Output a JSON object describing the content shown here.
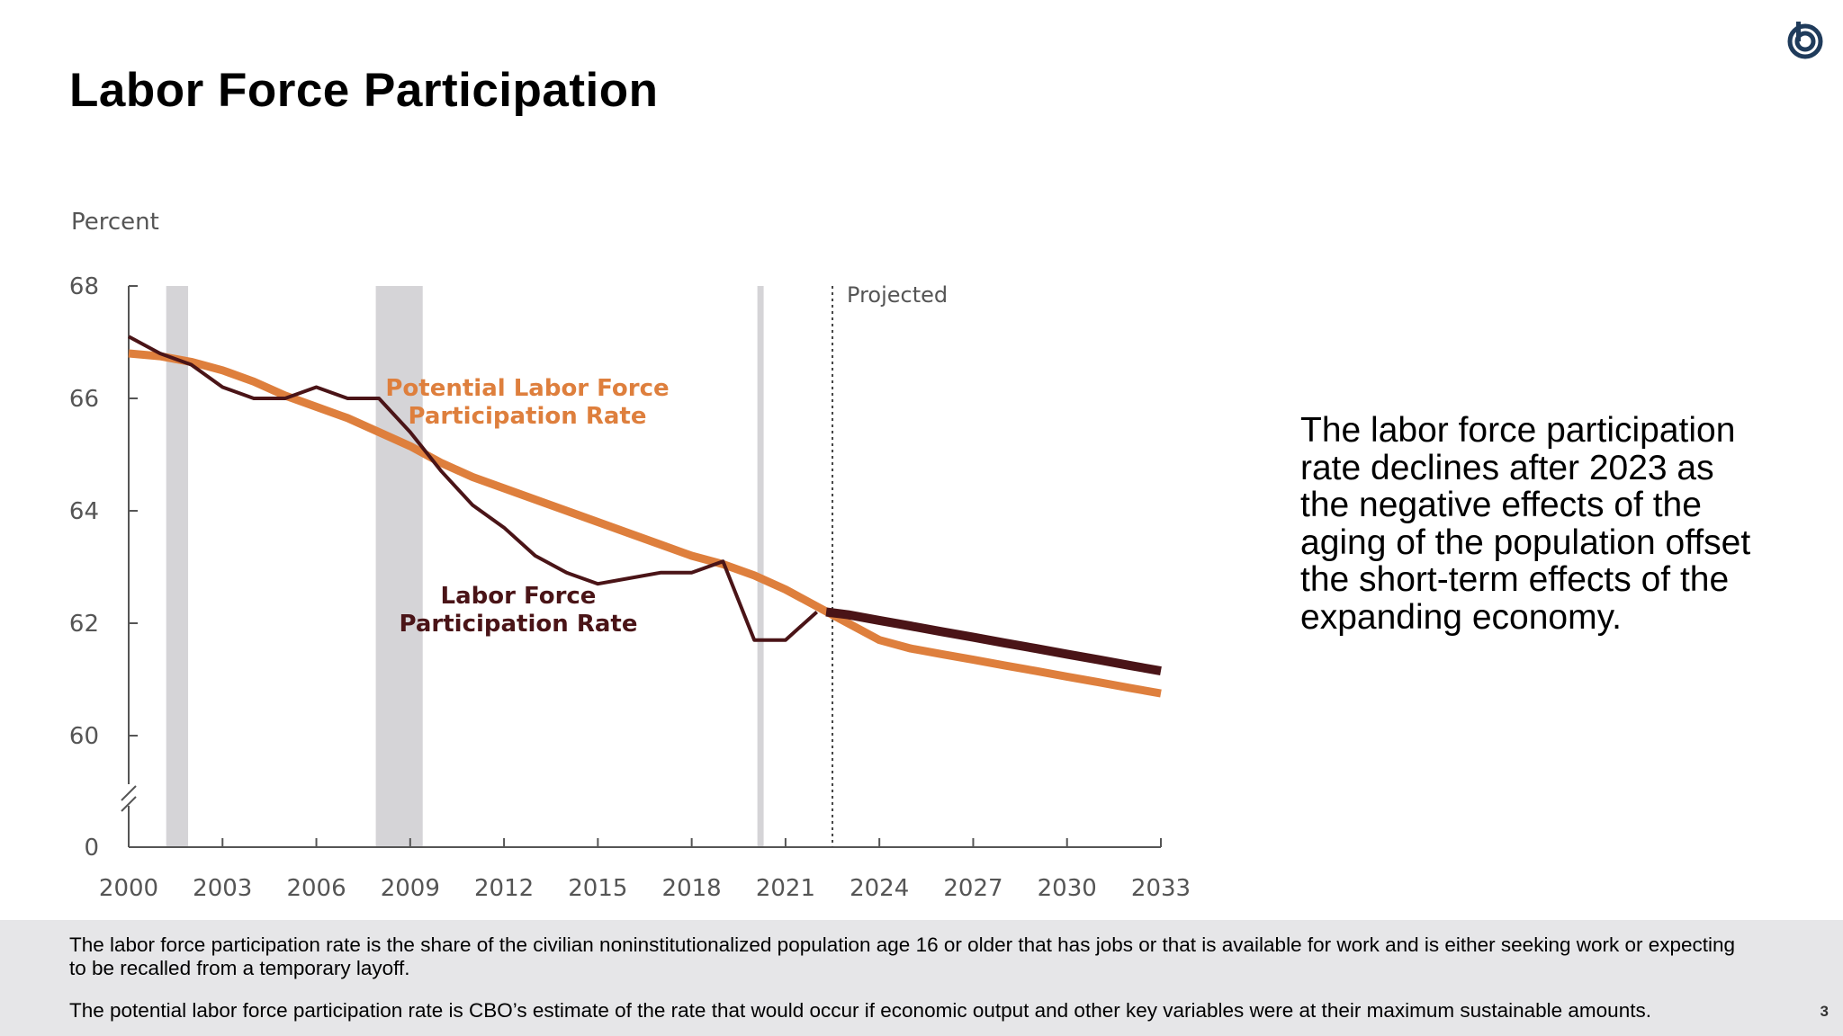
{
  "slide": {
    "title": "Labor Force Participation",
    "side_text": "The labor force participation rate declines after 2023 as the negative effects of the aging of the population offset the short-term effects of the expanding economy.",
    "footnote_1": "The labor force participation rate is the share of the civilian noninstitutionalized population age 16 or older that has jobs or that is available for work and is either seeking work or expecting to be recalled from a temporary layoff.",
    "footnote_2": "The potential labor force participation rate is CBO’s estimate of the rate that would occur if economic output and other key variables were at their maximum sustainable amounts.",
    "page_number": "3",
    "logo_icon": "cbo-logo-icon"
  },
  "chart_data": {
    "type": "line",
    "ylabel": "Percent",
    "y_ticks": [
      0,
      60,
      62,
      64,
      66,
      68
    ],
    "x_ticks": [
      2000,
      2003,
      2006,
      2009,
      2012,
      2015,
      2018,
      2021,
      2024,
      2027,
      2030,
      2033
    ],
    "xlim": [
      2000,
      2033
    ],
    "ylim_display": [
      59,
      68
    ],
    "y_axis_break": true,
    "projected_start": 2022.5,
    "projected_label": "Projected",
    "recessions": [
      [
        2001.2,
        2001.9
      ],
      [
        2007.9,
        2009.4
      ],
      [
        2020.1,
        2020.3
      ]
    ],
    "colors": {
      "potential": "#de7f3d",
      "actual": "#4a1417",
      "recession": "#d5d4d7",
      "axis": "#555555"
    },
    "series": [
      {
        "name": "Potential Labor Force Participation Rate",
        "label_lines": [
          "Potential Labor Force",
          "Participation Rate"
        ],
        "x": [
          2000,
          2001,
          2002,
          2003,
          2004,
          2005,
          2006,
          2007,
          2008,
          2009,
          2010,
          2011,
          2012,
          2013,
          2014,
          2015,
          2016,
          2017,
          2018,
          2019,
          2020,
          2021,
          2022,
          2023,
          2024,
          2025,
          2026,
          2027,
          2028,
          2029,
          2030,
          2031,
          2032,
          2033
        ],
        "values": [
          66.8,
          66.75,
          66.65,
          66.5,
          66.3,
          66.05,
          65.85,
          65.65,
          65.4,
          65.15,
          64.85,
          64.6,
          64.4,
          64.2,
          64.0,
          63.8,
          63.6,
          63.4,
          63.2,
          63.05,
          62.85,
          62.6,
          62.3,
          62.0,
          61.7,
          61.55,
          61.45,
          61.35,
          61.25,
          61.15,
          61.05,
          60.95,
          60.85,
          60.75
        ]
      },
      {
        "name": "Labor Force Participation Rate",
        "label_lines": [
          "Labor Force",
          "Participation Rate"
        ],
        "x": [
          2000,
          2001,
          2002,
          2003,
          2004,
          2005,
          2006,
          2007,
          2008,
          2009,
          2010,
          2011,
          2012,
          2013,
          2014,
          2015,
          2016,
          2017,
          2018,
          2019,
          2020,
          2021,
          2022
        ],
        "values": [
          67.1,
          66.8,
          66.6,
          66.2,
          66.0,
          66.0,
          66.2,
          66.0,
          66.0,
          65.4,
          64.7,
          64.1,
          63.7,
          63.2,
          62.9,
          62.7,
          62.8,
          62.9,
          62.9,
          63.1,
          61.7,
          61.7,
          62.2
        ]
      },
      {
        "name": "Labor Force Participation Rate (projected)",
        "x": [
          2022.3,
          2023,
          2024,
          2025,
          2026,
          2027,
          2028,
          2029,
          2030,
          2031,
          2032,
          2033
        ],
        "values": [
          62.2,
          62.15,
          62.05,
          61.95,
          61.85,
          61.75,
          61.65,
          61.55,
          61.45,
          61.35,
          61.25,
          61.15
        ]
      }
    ]
  }
}
